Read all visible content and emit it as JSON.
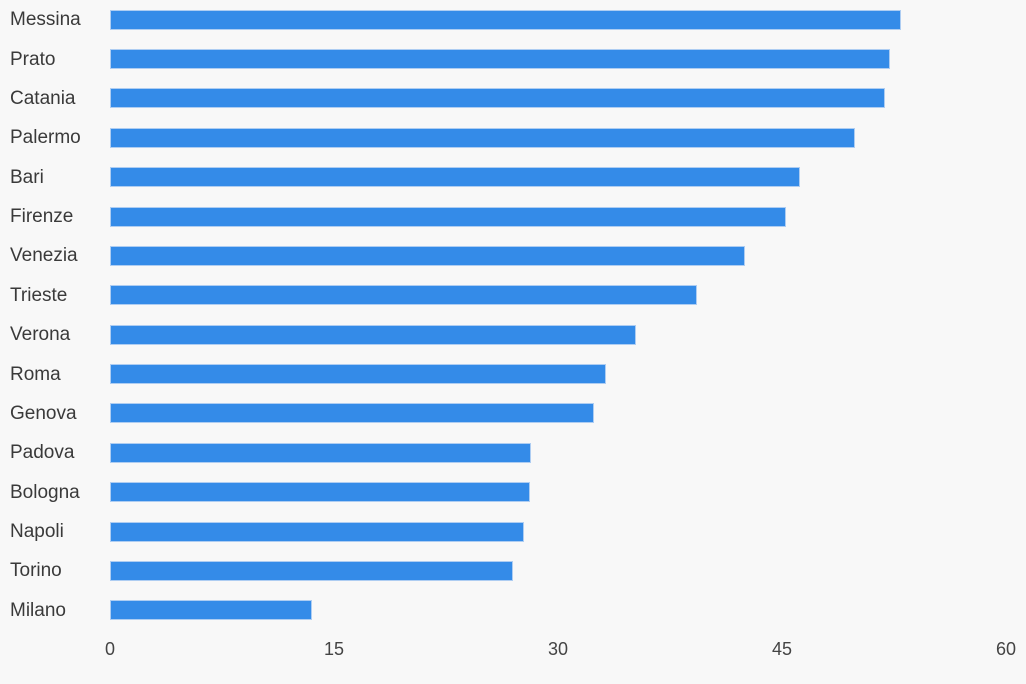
{
  "background_color": "#f8f8f8",
  "chart_data": {
    "type": "bar",
    "orientation": "horizontal",
    "title": "",
    "xlabel": "",
    "ylabel": "",
    "categories": [
      "Messina",
      "Prato",
      "Catania",
      "Palermo",
      "Bari",
      "Firenze",
      "Venezia",
      "Trieste",
      "Verona",
      "Roma",
      "Genova",
      "Padova",
      "Bologna",
      "Napoli",
      "Torino",
      "Milano"
    ],
    "values": [
      53.0,
      52.2,
      51.9,
      49.9,
      46.2,
      45.3,
      42.5,
      39.3,
      35.2,
      33.2,
      32.4,
      28.2,
      28.1,
      27.7,
      27.0,
      13.5
    ],
    "xlim": [
      0,
      60
    ],
    "x_ticks": [
      "0",
      "15",
      "30",
      "45",
      "60"
    ],
    "x_tick_values": [
      0,
      15,
      30,
      45,
      60
    ],
    "grid": false,
    "legend": false,
    "bar_color": "#348be8",
    "bar_edge_color": "#aecdf2",
    "label_color": "#3a3a3a",
    "tick_color": "#444444"
  }
}
